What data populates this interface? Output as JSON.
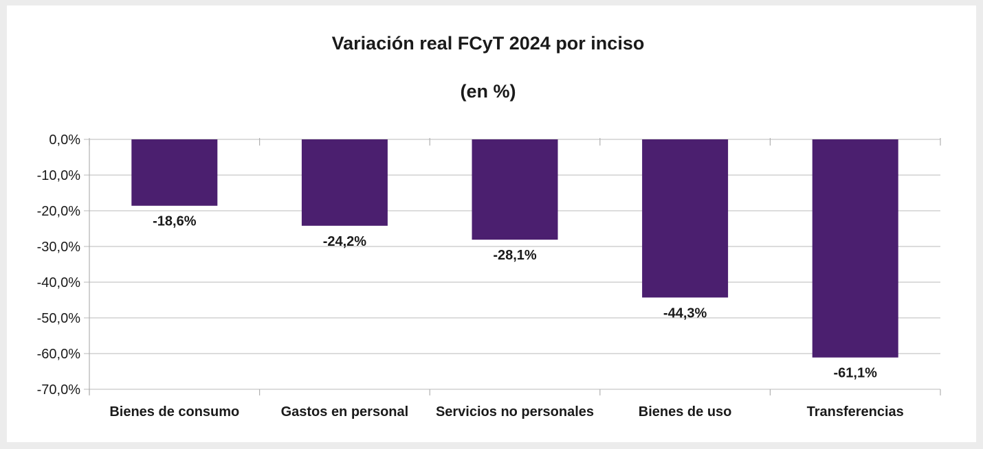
{
  "chart_data": {
    "type": "bar",
    "title": "Variación real FCyT 2024 por inciso",
    "subtitle": "(en %)",
    "categories": [
      "Bienes de consumo",
      "Gastos en personal",
      "Servicios no personales",
      "Bienes de uso",
      "Transferencias"
    ],
    "values": [
      -18.6,
      -24.2,
      -28.1,
      -44.3,
      -61.1
    ],
    "value_labels": [
      "-18,6%",
      "-24,2%",
      "-28,1%",
      "-44,3%",
      "-61,1%"
    ],
    "ylim": [
      -70,
      0
    ],
    "yticks": [
      0,
      -10,
      -20,
      -30,
      -40,
      -50,
      -60,
      -70
    ],
    "ytick_labels": [
      "0,0%",
      "-10,0%",
      "-20,0%",
      "-30,0%",
      "-40,0%",
      "-50,0%",
      "-60,0%",
      "-70,0%"
    ],
    "xlabel": "",
    "ylabel": "",
    "grid": true,
    "legend": "none",
    "bar_color": "#4b1f6f",
    "grid_color": "#c8c8c8",
    "axis_color": "#b0b0b0"
  }
}
